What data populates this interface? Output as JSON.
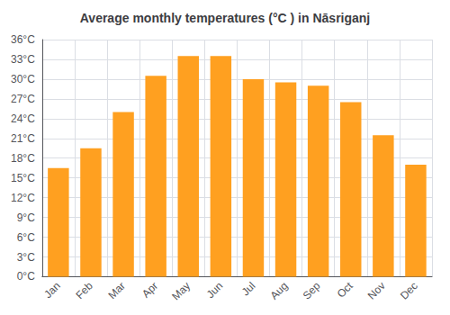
{
  "chart_data": {
    "type": "bar",
    "title": "Average monthly temperatures (°C ) in Nāsriganj",
    "categories": [
      "Jan",
      "Feb",
      "Mar",
      "Apr",
      "May",
      "Jun",
      "Jul",
      "Aug",
      "Sep",
      "Oct",
      "Nov",
      "Dec"
    ],
    "values": [
      16.5,
      19.5,
      25.0,
      30.5,
      33.5,
      33.5,
      30.0,
      29.5,
      29.0,
      26.5,
      21.5,
      17.0
    ],
    "color": "#FFA020",
    "ylim": [
      0,
      36
    ],
    "yticks": [
      {
        "value": 0,
        "label": "0°C"
      },
      {
        "value": 3,
        "label": "3°C"
      },
      {
        "value": 6,
        "label": "6°C"
      },
      {
        "value": 9,
        "label": "9°C"
      },
      {
        "value": 12,
        "label": "12°C"
      },
      {
        "value": 15,
        "label": "15°C"
      },
      {
        "value": 18,
        "label": "18°C"
      },
      {
        "value": 21,
        "label": "21°C"
      },
      {
        "value": 24,
        "label": "24°C"
      },
      {
        "value": 27,
        "label": "27°C"
      },
      {
        "value": 30,
        "label": "30°C"
      },
      {
        "value": 33,
        "label": "33°C"
      },
      {
        "value": 36,
        "label": "36°C"
      }
    ],
    "grid": true
  }
}
